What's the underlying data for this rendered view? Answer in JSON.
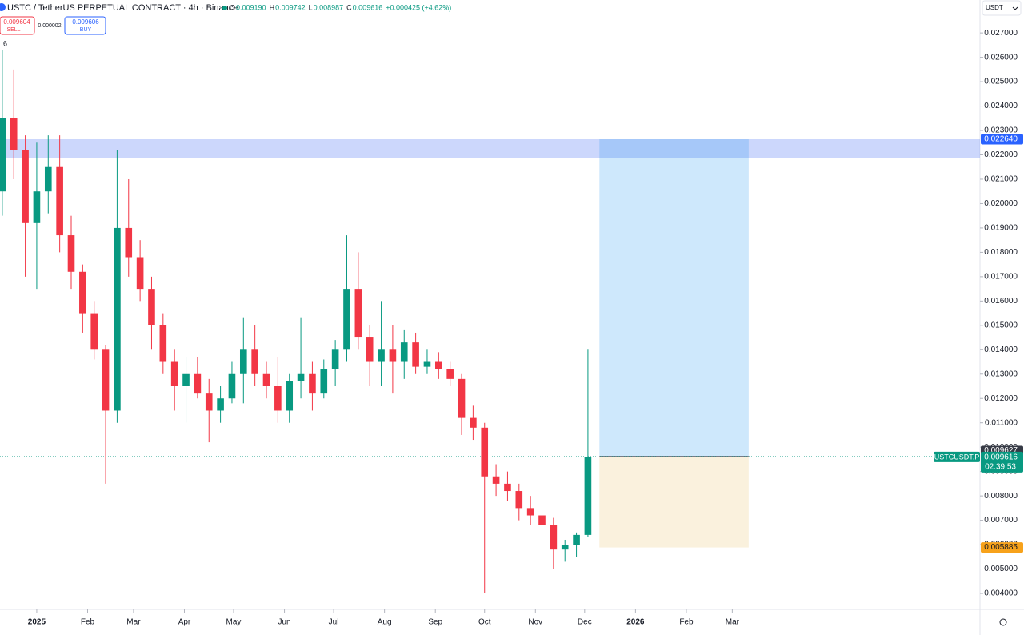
{
  "chart_data": {
    "type": "candlestick",
    "title": "USTC / TetherUS PERPETUAL CONTRACT · 4h · Binance",
    "ohlc": [
      {
        "key": "O",
        "text": "0.009190"
      },
      {
        "key": "H",
        "text": "0.009742"
      },
      {
        "key": "L",
        "text": "0.008987"
      },
      {
        "key": "C",
        "text": "0.009616"
      }
    ],
    "change": "+0.000425 (+4.62%)",
    "sell": {
      "price": "0.009604",
      "label": "SELL"
    },
    "spread": "0.000002",
    "buy": {
      "price": "0.009606",
      "label": "BUY"
    },
    "currency": "USDT",
    "indicator_count": "6",
    "up_color": "#089981",
    "down_color": "#f23645",
    "x": [
      -21,
      -14,
      -7,
      0,
      7,
      14,
      21,
      28,
      35,
      42,
      49,
      56,
      63,
      70,
      77,
      84,
      91,
      98,
      105,
      112,
      119,
      126,
      133,
      140,
      147,
      154,
      161,
      168,
      175,
      182,
      189,
      196,
      203,
      210,
      217,
      224,
      231,
      238,
      245,
      252,
      259,
      266,
      273,
      280,
      287,
      294,
      301,
      308,
      315,
      322,
      329,
      336
    ],
    "open": [
      0.0205,
      0.0235,
      0.0222,
      0.0192,
      0.0205,
      0.0215,
      0.0187,
      0.0172,
      0.0155,
      0.014,
      0.0115,
      0.019,
      0.0178,
      0.0165,
      0.015,
      0.0135,
      0.0125,
      0.013,
      0.0122,
      0.0115,
      0.012,
      0.013,
      0.014,
      0.013,
      0.0125,
      0.0115,
      0.0127,
      0.013,
      0.0122,
      0.0132,
      0.014,
      0.0165,
      0.0145,
      0.0135,
      0.014,
      0.0135,
      0.0143,
      0.0133,
      0.0135,
      0.0132,
      0.0128,
      0.0112,
      0.0108,
      0.0088,
      0.0085,
      0.0082,
      0.0075,
      0.0072,
      0.0068,
      0.0058,
      0.006,
      0.0064
    ],
    "high": [
      0.0263,
      0.0255,
      0.0228,
      0.0225,
      0.0228,
      0.0228,
      0.0195,
      0.0175,
      0.016,
      0.0142,
      0.0222,
      0.021,
      0.0185,
      0.017,
      0.0155,
      0.014,
      0.0137,
      0.0137,
      0.0128,
      0.0125,
      0.0135,
      0.0153,
      0.015,
      0.0135,
      0.0137,
      0.013,
      0.0153,
      0.0135,
      0.0136,
      0.0144,
      0.0187,
      0.018,
      0.015,
      0.016,
      0.015,
      0.0148,
      0.0147,
      0.014,
      0.0139,
      0.0135,
      0.013,
      0.0117,
      0.011,
      0.0093,
      0.009,
      0.0085,
      0.008,
      0.0075,
      0.0071,
      0.0062,
      0.0065,
      0.014
    ],
    "low": [
      0.0195,
      0.021,
      0.017,
      0.0165,
      0.0196,
      0.018,
      0.0165,
      0.0147,
      0.0136,
      0.0085,
      0.011,
      0.017,
      0.016,
      0.014,
      0.013,
      0.0115,
      0.011,
      0.012,
      0.0102,
      0.011,
      0.0118,
      0.0118,
      0.0125,
      0.012,
      0.011,
      0.011,
      0.012,
      0.0115,
      0.012,
      0.0125,
      0.0135,
      0.014,
      0.0125,
      0.0125,
      0.0122,
      0.0128,
      0.013,
      0.013,
      0.0128,
      0.0125,
      0.0105,
      0.0103,
      0.004,
      0.008,
      0.0078,
      0.007,
      0.0068,
      0.0064,
      0.005,
      0.0053,
      0.0055,
      0.0063
    ],
    "close": [
      0.0235,
      0.0222,
      0.0192,
      0.0205,
      0.0215,
      0.0187,
      0.0172,
      0.0155,
      0.014,
      0.0115,
      0.019,
      0.0178,
      0.0165,
      0.015,
      0.0135,
      0.0125,
      0.013,
      0.0122,
      0.0115,
      0.012,
      0.013,
      0.014,
      0.013,
      0.0125,
      0.0115,
      0.0127,
      0.013,
      0.0122,
      0.0132,
      0.014,
      0.0165,
      0.0145,
      0.0135,
      0.014,
      0.0135,
      0.0143,
      0.0133,
      0.0135,
      0.0132,
      0.0128,
      0.0112,
      0.0108,
      0.0088,
      0.0085,
      0.0082,
      0.0075,
      0.0072,
      0.0068,
      0.0058,
      0.006,
      0.0064,
      0.0096
    ],
    "xlim": [
      -22.4,
      575
    ],
    "xticks": [
      {
        "value": 0,
        "label": "2025"
      },
      {
        "value": 31,
        "label": "Feb"
      },
      {
        "value": 59,
        "label": "Mar"
      },
      {
        "value": 90,
        "label": "Apr"
      },
      {
        "value": 120,
        "label": "May"
      },
      {
        "value": 151,
        "label": "Jun"
      },
      {
        "value": 181,
        "label": "Jul"
      },
      {
        "value": 212,
        "label": "Aug"
      },
      {
        "value": 243,
        "label": "Sep"
      },
      {
        "value": 273,
        "label": "Oct"
      },
      {
        "value": 304,
        "label": "Nov"
      },
      {
        "value": 334,
        "label": "Dec"
      },
      {
        "value": 365,
        "label": "2026"
      },
      {
        "value": 396,
        "label": "Feb"
      },
      {
        "value": 424,
        "label": "Mar"
      }
    ],
    "ylim": [
      0.00341,
      0.02835
    ],
    "yticks": [
      {
        "value": 0.004,
        "label": "0.004000"
      },
      {
        "value": 0.005,
        "label": "0.005000"
      },
      {
        "value": 0.006,
        "label": "0.006000"
      },
      {
        "value": 0.007,
        "label": "0.007000"
      },
      {
        "value": 0.008,
        "label": "0.008000"
      },
      {
        "value": 0.009,
        "label": "0.009000"
      },
      {
        "value": 0.01,
        "label": "0.010000"
      },
      {
        "value": 0.011,
        "label": "0.011000"
      },
      {
        "value": 0.012,
        "label": "0.012000"
      },
      {
        "value": 0.013,
        "label": "0.013000"
      },
      {
        "value": 0.014,
        "label": "0.014000"
      },
      {
        "value": 0.015,
        "label": "0.015000"
      },
      {
        "value": 0.016,
        "label": "0.016000"
      },
      {
        "value": 0.017,
        "label": "0.017000"
      },
      {
        "value": 0.018,
        "label": "0.018000"
      },
      {
        "value": 0.019,
        "label": "0.019000"
      },
      {
        "value": 0.02,
        "label": "0.020000"
      },
      {
        "value": 0.021,
        "label": "0.021000"
      },
      {
        "value": 0.022,
        "label": "0.022000"
      },
      {
        "value": 0.023,
        "label": "0.023000"
      },
      {
        "value": 0.024,
        "label": "0.024000"
      },
      {
        "value": 0.025,
        "label": "0.025000"
      },
      {
        "value": 0.026,
        "label": "0.026000"
      },
      {
        "value": 0.027,
        "label": "0.027000"
      }
    ],
    "zone": {
      "top": 0.02264,
      "bottom": 0.02188,
      "color": "rgba(110,140,245,0.35)"
    },
    "position": {
      "x_start": 343,
      "x_end": 434,
      "target": {
        "value": 0.02264,
        "label": "0.022640"
      },
      "entry": {
        "value": 0.009627,
        "label": "0.009627"
      },
      "stop": {
        "value": 0.005885,
        "label": "0.005885"
      }
    },
    "last": {
      "value": 0.009616,
      "label": "0.009616",
      "symbol": "USTCUSDT.P",
      "countdown": "02:39:53"
    }
  }
}
